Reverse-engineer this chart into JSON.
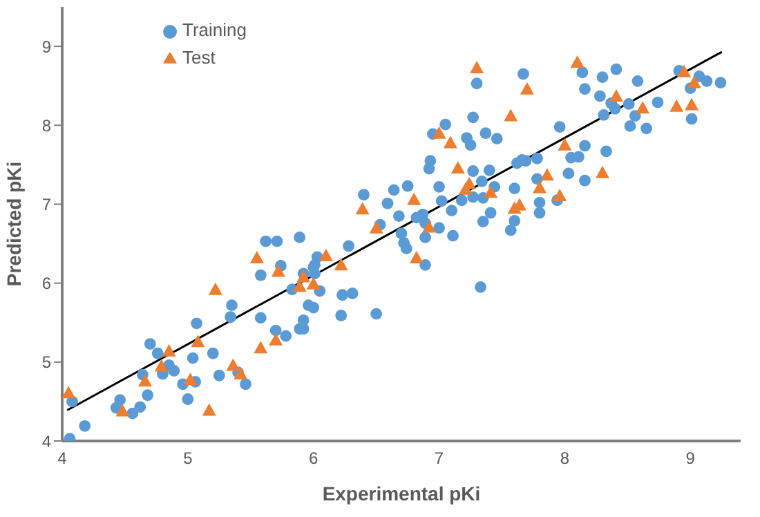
{
  "chart_data": {
    "type": "scatter",
    "xlabel": "Experimental pKi",
    "ylabel": "Predicted pKi",
    "xlim": [
      4,
      9.4
    ],
    "ylim": [
      4,
      9.5
    ],
    "xticks": [
      4,
      5,
      6,
      7,
      8,
      9
    ],
    "yticks": [
      4,
      5,
      6,
      7,
      8,
      9
    ],
    "grid": false,
    "legend": "top left",
    "series": [
      {
        "name": "Training",
        "color": "#5b9bd5",
        "marker": "circle",
        "x": [
          4.06,
          4.08,
          4.18,
          4.46,
          4.43,
          4.56,
          4.62,
          4.68,
          4.64,
          4.7,
          4.76,
          4.8,
          4.89,
          4.85,
          4.96,
          5.0,
          5.06,
          5.04,
          5.07,
          5.2,
          5.25,
          5.35,
          5.34,
          5.4,
          5.46,
          5.58,
          5.58,
          5.74,
          5.7,
          5.78,
          5.83,
          5.89,
          5.92,
          5.92,
          5.92,
          6.0,
          6.01,
          6.05,
          5.96,
          6.0,
          6.03,
          5.62,
          5.71,
          5.89,
          6.01,
          6.28,
          6.23,
          6.31,
          6.22,
          6.5,
          6.53,
          6.4,
          6.59,
          6.64,
          6.75,
          6.68,
          6.7,
          6.72,
          6.74,
          6.82,
          6.87,
          6.89,
          6.89,
          6.89,
          6.93,
          6.92,
          6.95,
          7.05,
          7.0,
          7.02,
          7.0,
          7.1,
          7.11,
          7.18,
          7.22,
          7.25,
          7.37,
          7.46,
          7.27,
          7.4,
          7.34,
          7.35,
          7.27,
          7.44,
          7.41,
          7.35,
          7.33,
          7.6,
          7.6,
          7.57,
          7.66,
          7.3,
          7.67,
          7.27,
          7.62,
          7.69,
          7.78,
          7.78,
          7.8,
          7.8,
          7.94,
          7.96,
          8.03,
          8.05,
          8.11,
          8.16,
          8.16,
          8.33,
          8.14,
          8.16,
          8.3,
          8.41,
          8.28,
          8.31,
          8.37,
          8.4,
          8.51,
          8.56,
          8.52,
          8.65,
          8.58,
          8.74,
          8.91,
          9.0,
          9.01,
          9.07,
          9.13,
          9.24
        ],
        "values": [
          4.03,
          4.5,
          4.19,
          4.52,
          4.42,
          4.35,
          4.43,
          4.58,
          4.84,
          5.23,
          5.11,
          4.85,
          4.89,
          4.96,
          4.72,
          4.53,
          4.75,
          5.05,
          5.49,
          5.11,
          4.83,
          5.72,
          5.57,
          4.87,
          4.72,
          5.56,
          6.1,
          6.22,
          5.4,
          5.33,
          5.92,
          5.42,
          5.42,
          5.53,
          6.12,
          6.2,
          6.12,
          5.9,
          5.72,
          5.69,
          6.33,
          6.53,
          6.53,
          6.58,
          6.23,
          6.47,
          5.85,
          5.87,
          5.59,
          5.61,
          6.74,
          7.12,
          7.01,
          7.18,
          7.23,
          6.85,
          6.63,
          6.51,
          6.44,
          6.83,
          6.87,
          6.76,
          6.58,
          6.23,
          7.55,
          7.45,
          7.89,
          8.01,
          7.22,
          7.04,
          6.7,
          6.92,
          6.6,
          7.05,
          7.84,
          7.75,
          7.9,
          7.83,
          7.42,
          7.43,
          7.29,
          7.08,
          7.09,
          7.22,
          6.89,
          6.78,
          5.95,
          7.2,
          6.79,
          6.67,
          7.56,
          8.53,
          8.65,
          8.1,
          7.52,
          7.55,
          7.58,
          7.32,
          7.02,
          6.89,
          7.05,
          7.98,
          7.39,
          7.59,
          7.6,
          7.74,
          7.3,
          7.67,
          8.67,
          8.46,
          8.61,
          8.71,
          8.37,
          8.13,
          8.28,
          8.21,
          8.27,
          8.12,
          7.99,
          7.96,
          8.56,
          8.29,
          8.69,
          8.47,
          8.08,
          8.62,
          8.56,
          8.54
        ]
      },
      {
        "name": "Test",
        "color": "#ed7d31",
        "marker": "triangle",
        "x": [
          4.05,
          4.48,
          4.66,
          4.79,
          4.85,
          5.02,
          5.08,
          5.17,
          5.22,
          5.36,
          5.42,
          5.55,
          5.58,
          5.7,
          5.72,
          5.89,
          5.92,
          6.0,
          6.1,
          6.22,
          6.39,
          6.5,
          6.8,
          6.82,
          6.92,
          7.0,
          7.09,
          7.15,
          7.21,
          7.24,
          7.41,
          7.6,
          7.64,
          7.3,
          7.7,
          7.57,
          8.1,
          8.41,
          8.62,
          8.0,
          7.86,
          7.8,
          7.96,
          8.3,
          8.89,
          9.01,
          8.95,
          9.03
        ],
        "values": [
          4.61,
          4.38,
          4.76,
          4.95,
          5.14,
          4.78,
          5.26,
          4.39,
          5.92,
          4.96,
          4.85,
          6.32,
          5.18,
          5.28,
          6.15,
          5.96,
          6.08,
          5.99,
          6.35,
          6.23,
          6.94,
          6.7,
          7.06,
          6.32,
          6.71,
          7.9,
          7.78,
          7.46,
          7.19,
          7.26,
          7.15,
          6.95,
          6.99,
          8.73,
          8.46,
          8.12,
          8.8,
          8.37,
          8.22,
          7.75,
          7.37,
          7.21,
          7.11,
          7.4,
          8.24,
          8.26,
          8.68,
          8.54
        ]
      },
      {
        "type": "line",
        "color": "#000000",
        "marker": "none",
        "x": [
          4.04,
          9.25
        ],
        "values": [
          4.39,
          8.93
        ]
      }
    ]
  }
}
